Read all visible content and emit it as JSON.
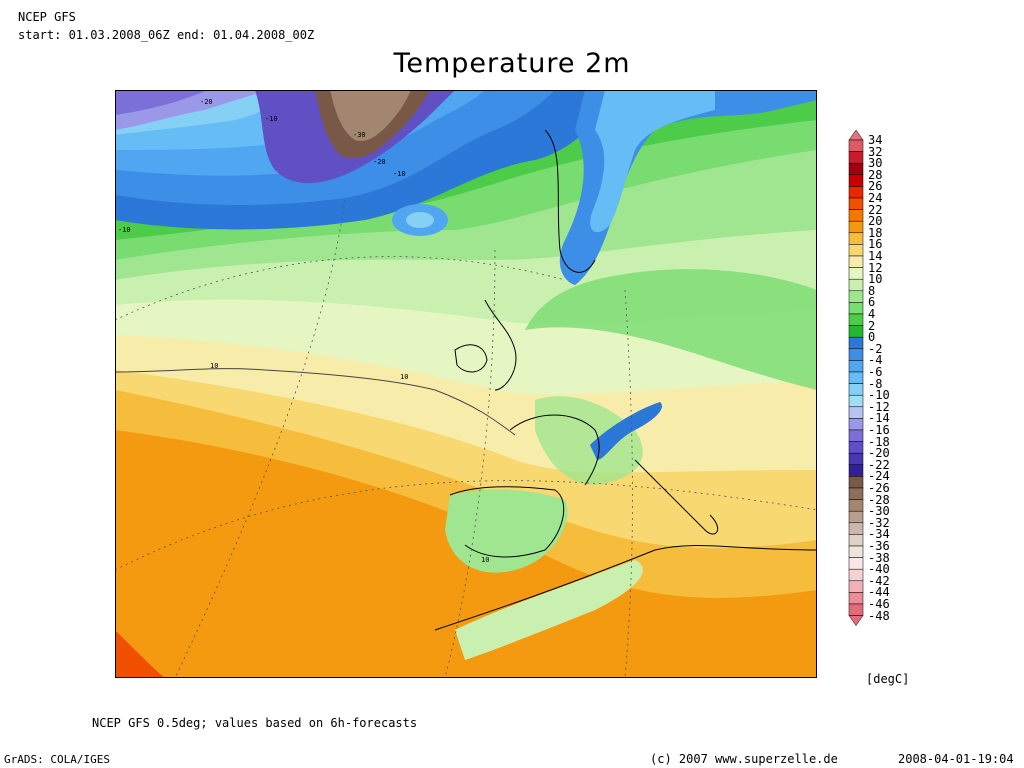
{
  "header": {
    "model": "NCEP GFS",
    "period": "start: 01.03.2008_06Z end: 01.04.2008_00Z"
  },
  "title": "Temperature 2m",
  "map": {
    "contour_labels": [
      "-20",
      "-10",
      "-30",
      "-20",
      "-10",
      "-10",
      "10",
      "10",
      "10"
    ]
  },
  "legend": {
    "unit": "[degC]",
    "levels": [
      "34",
      "32",
      "30",
      "28",
      "26",
      "24",
      "22",
      "20",
      "18",
      "16",
      "14",
      "12",
      "10",
      "8",
      "6",
      "4",
      "2",
      "0",
      "-2",
      "-4",
      "-6",
      "-8",
      "-10",
      "-12",
      "-14",
      "-16",
      "-18",
      "-20",
      "-22",
      "-24",
      "-26",
      "-28",
      "-30",
      "-32",
      "-34",
      "-36",
      "-38",
      "-40",
      "-42",
      "-44",
      "-46",
      "-48"
    ],
    "colors": [
      "#e8707a",
      "#e05a66",
      "#c81e2c",
      "#a00012",
      "#c80000",
      "#e82800",
      "#f05000",
      "#f47800",
      "#f49a10",
      "#f6bc3c",
      "#f8d870",
      "#f8ecaa",
      "#e6f6c2",
      "#caf0b0",
      "#a0e690",
      "#78dc70",
      "#4ccc48",
      "#20b830",
      "#2c78d8",
      "#3c8ee6",
      "#50a6f0",
      "#66bcf4",
      "#86d0f6",
      "#a2dcf8",
      "#b6c4f2",
      "#9a98e8",
      "#7c70d8",
      "#6050c4",
      "#4838b0",
      "#32209a",
      "#7a5848",
      "#8e6e5c",
      "#a28670",
      "#b89e8c",
      "#ccb8aa",
      "#e0d2c8",
      "#eee4dc",
      "#f8e8e8",
      "#f8d0d4",
      "#f4b0b8",
      "#ec8c96",
      "#e46c78"
    ]
  },
  "footer": {
    "note": "NCEP GFS 0.5deg; values based on 6h-forecasts",
    "software": "GrADS: COLA/IGES",
    "copyright": "(c) 2007 www.superzelle.de",
    "timestamp": "2008-04-01-19:04"
  }
}
